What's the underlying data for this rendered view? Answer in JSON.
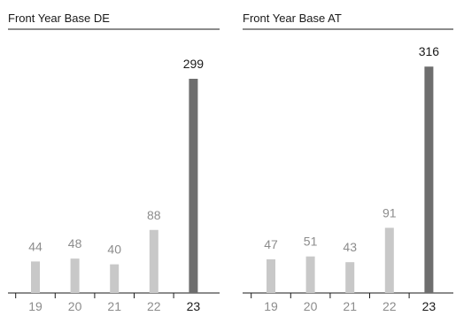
{
  "colors": {
    "past_bar": "#c8c8c8",
    "current_bar": "#6e6e6e",
    "past_label": "#8c8c8c",
    "current_label": "#1a1a1a",
    "axis": "#1a1a1a"
  },
  "chart_data": [
    {
      "type": "bar",
      "title": "Front Year Base DE",
      "categories": [
        "19",
        "20",
        "21",
        "22",
        "23"
      ],
      "values": [
        44,
        48,
        40,
        88,
        299
      ],
      "highlight_index": 4,
      "ylim": [
        0,
        320
      ],
      "grid": false
    },
    {
      "type": "bar",
      "title": "Front Year Base AT",
      "categories": [
        "19",
        "20",
        "21",
        "22",
        "23"
      ],
      "values": [
        47,
        51,
        43,
        91,
        316
      ],
      "highlight_index": 4,
      "ylim": [
        0,
        320
      ],
      "grid": false
    }
  ]
}
